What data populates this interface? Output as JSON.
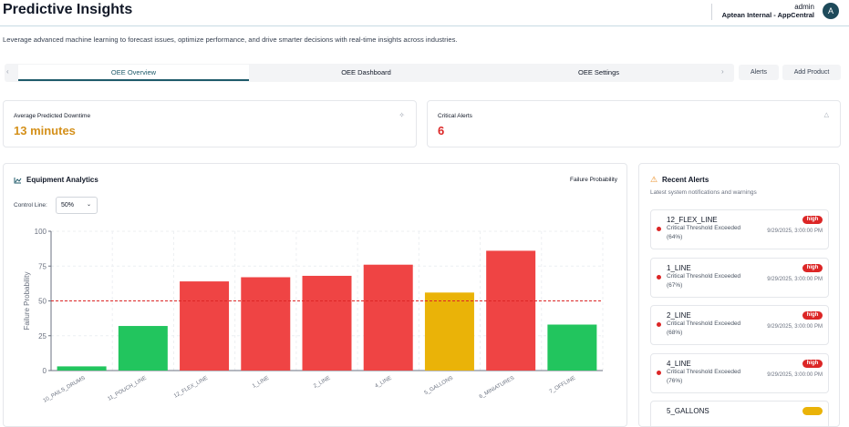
{
  "header": {
    "title": "Predictive Insights",
    "user": "admin",
    "org": "Aptean Internal - AppCentral",
    "avatar": "A"
  },
  "subtitle": "Leverage advanced machine learning to forecast issues, optimize performance, and drive smarter decisions with real-time insights across industries.",
  "tabs": [
    "OEE Overview",
    "OEE Dashboard",
    "OEE Settings"
  ],
  "actions": [
    "Alerts",
    "Add Product"
  ],
  "kpis": [
    {
      "label": "Average Predicted Downtime",
      "value": "13 minutes"
    },
    {
      "label": "Critical Alerts",
      "value": "6"
    }
  ],
  "analytics": {
    "title": "Equipment Analytics",
    "metric": "Failure Probability",
    "control_label": "Control Line:",
    "control_value": "50%"
  },
  "chart_data": {
    "type": "bar",
    "categories": [
      "10_PAILS_DRUMS",
      "11_POUCH_LINE",
      "12_FLEX_LINE",
      "1_LINE",
      "2_LINE",
      "4_LINE",
      "5_GALLONS",
      "6_MINIATURES",
      "7_OFFLINE"
    ],
    "values": [
      3,
      32,
      64,
      67,
      68,
      76,
      56,
      86,
      33
    ],
    "colors": [
      "#22c55e",
      "#22c55e",
      "#ef4444",
      "#ef4444",
      "#ef4444",
      "#ef4444",
      "#eab308",
      "#ef4444",
      "#22c55e"
    ],
    "ylabel": "Failure Probability",
    "ylim": [
      0,
      100
    ],
    "yticks": [
      0,
      25,
      50,
      75,
      100
    ],
    "grid": true,
    "control_line": 50,
    "control_color": "#dc2626"
  },
  "alerts": {
    "title": "Recent Alerts",
    "subtitle": "Latest system notifications and warnings",
    "items": [
      {
        "name": "12_FLEX_LINE",
        "message": "Critical Threshold Exceeded (64%)",
        "time": "9/29/2025, 3:00:00 PM",
        "severity": "high"
      },
      {
        "name": "1_LINE",
        "message": "Critical Threshold Exceeded (67%)",
        "time": "9/29/2025, 3:00:00 PM",
        "severity": "high"
      },
      {
        "name": "2_LINE",
        "message": "Critical Threshold Exceeded (68%)",
        "time": "9/29/2025, 3:00:00 PM",
        "severity": "high"
      },
      {
        "name": "4_LINE",
        "message": "Critical Threshold Exceeded (76%)",
        "time": "9/29/2025, 3:00:00 PM",
        "severity": "high"
      },
      {
        "name": "5_GALLONS"
      }
    ]
  }
}
